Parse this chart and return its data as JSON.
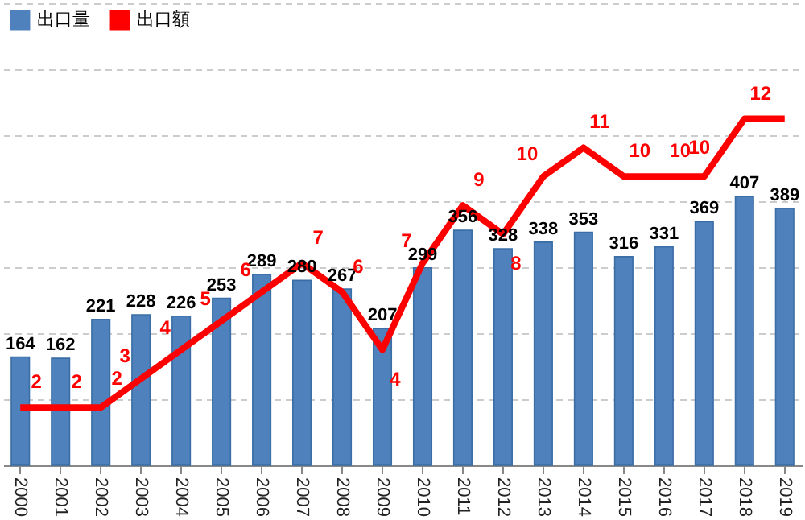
{
  "chart_data": {
    "type": "bar",
    "categories": [
      "2000",
      "2001",
      "2002",
      "2003",
      "2004",
      "2005",
      "2006",
      "2007",
      "2008",
      "2009",
      "2010",
      "2011",
      "2012",
      "2013",
      "2014",
      "2015",
      "2016",
      "2017",
      "2018",
      "2019"
    ],
    "series": [
      {
        "name": "出口量",
        "color": "#4f81bd",
        "values": [
          164,
          162,
          221,
          228,
          226,
          253,
          289,
          280,
          267,
          207,
          299,
          356,
          328,
          338,
          353,
          316,
          331,
          369,
          407,
          389
        ],
        "value_labels": [
          "164",
          "162",
          "221",
          "228",
          "226",
          "253",
          "289",
          "280",
          "267",
          "207",
          "299",
          "356",
          "328",
          "338",
          "353",
          "316",
          "331",
          "369",
          "407",
          "389"
        ]
      },
      {
        "name": "出口額",
        "type": "line",
        "axis": "y2",
        "color": "#ff0000",
        "values": [
          2,
          2,
          2,
          3,
          4,
          5,
          6,
          7,
          6,
          4,
          7,
          9,
          8,
          10,
          11,
          10,
          10,
          10,
          12,
          12
        ],
        "value_labels": [
          "2",
          "2",
          "2",
          "3",
          "4",
          "5",
          "6",
          "7",
          "6",
          "4",
          "7",
          "9",
          "8",
          "10",
          "11",
          "10",
          "10",
          "10",
          "12",
          null
        ]
      }
    ],
    "ylim": [
      0,
      700
    ],
    "yticks": [
      {
        "value": 0,
        "label": null
      },
      {
        "value": 100,
        "label": null
      },
      {
        "value": 200,
        "label": null
      },
      {
        "value": 300,
        "label": null
      },
      {
        "value": 400,
        "label": null
      },
      {
        "value": 500,
        "label": null
      },
      {
        "value": 600,
        "label": null
      },
      {
        "value": 700,
        "label": null
      }
    ],
    "y2lim": [
      0,
      16
    ],
    "tick_labels": "x",
    "grid": "y",
    "legend": "top left",
    "marker": "none",
    "line_style": "solid"
  }
}
